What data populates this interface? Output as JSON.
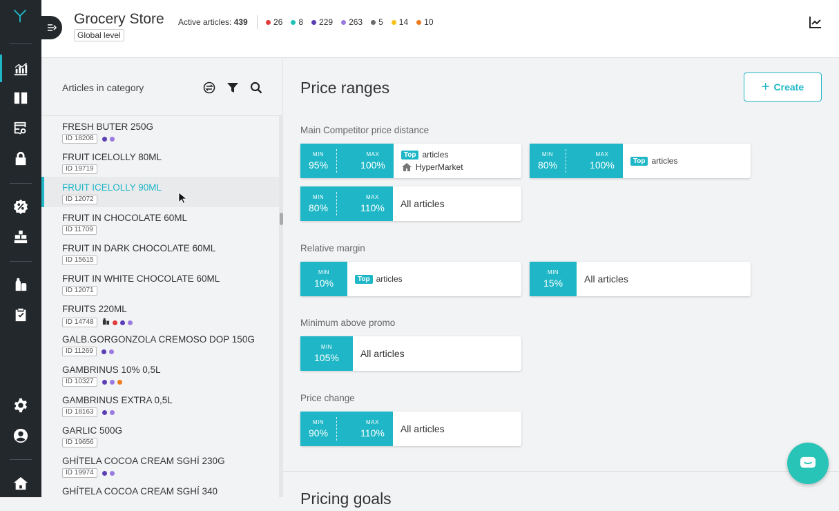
{
  "header": {
    "title": "Grocery Store",
    "level": "Global level",
    "active_label": "Active articles:",
    "active_count": "439",
    "counts": [
      {
        "value": "26",
        "color": "#e03b3b"
      },
      {
        "value": "8",
        "color": "#1fc1b7"
      },
      {
        "value": "229",
        "color": "#5b3fb5"
      },
      {
        "value": "263",
        "color": "#9b7be0"
      },
      {
        "value": "5",
        "color": "#6b6b6b"
      },
      {
        "value": "14",
        "color": "#f5c21b"
      },
      {
        "value": "10",
        "color": "#f07a1a"
      }
    ],
    "chart_icon": "trend-chart-icon"
  },
  "rail": {
    "items": [
      "analytics-icon",
      "columns-icon",
      "table-search-icon",
      "lock-icon",
      "discount-badge-icon",
      "warehouse-icon",
      "products-icon",
      "clipboard-check-icon",
      "settings-icon",
      "account-icon",
      "home-icon"
    ],
    "active": "analytics-icon"
  },
  "left_panel": {
    "title": "Articles in category",
    "tools": [
      "exchange-icon",
      "filter-icon",
      "search-icon"
    ],
    "articles": [
      {
        "name": "FRESH BUTER 250G",
        "id": "ID 18208",
        "dots": [
          "#5b3fb5",
          "#9b7be0"
        ]
      },
      {
        "name": "FRUIT ICELOLLY 80ML",
        "id": "ID 19719",
        "dots": []
      },
      {
        "name": "FRUIT ICELOLLY 90ML",
        "id": "ID 12072",
        "dots": [],
        "selected": true
      },
      {
        "name": "FRUIT IN CHOCOLATE 60ML",
        "id": "ID 11709",
        "dots": []
      },
      {
        "name": "FRUIT IN DARK CHOCOLATE 60ML",
        "id": "ID 15615",
        "dots": []
      },
      {
        "name": "FRUIT IN WHITE CHOCOLATE 60ML",
        "id": "ID 12071",
        "dots": []
      },
      {
        "name": "FRUITS 220ML",
        "id": "ID 14748",
        "dots": [
          "#e03b3b",
          "#5b3fb5",
          "#9b7be0"
        ],
        "icon": true
      },
      {
        "name": "GALB.GORGONZOLA CREMOSO DOP 150G",
        "id": "ID 11269",
        "dots": [
          "#5b3fb5",
          "#9b7be0"
        ]
      },
      {
        "name": "GAMBRINUS 10% 0,5L",
        "id": "ID 10327",
        "dots": [
          "#5b3fb5",
          "#9b7be0",
          "#f07a1a"
        ]
      },
      {
        "name": "GAMBRINUS EXTRA 0,5L",
        "id": "ID 18163",
        "dots": [
          "#5b3fb5",
          "#9b7be0"
        ]
      },
      {
        "name": "GARLIC 500G",
        "id": "ID 19656",
        "dots": []
      },
      {
        "name": "GHÍTELA COCOA CREAM SGHÍ 230G",
        "id": "ID 19974",
        "dots": [
          "#5b3fb5",
          "#9b7be0"
        ]
      },
      {
        "name": "GHÍTELA COCOA CREAM SGHÍ 340",
        "id": "",
        "dots": []
      }
    ]
  },
  "main": {
    "title": "Price ranges",
    "create_label": "Create",
    "sections": {
      "competitor": {
        "title": "Main Competitor price distance",
        "cards": [
          {
            "min_label": "MIN",
            "min": "95%",
            "max_label": "MAX",
            "max": "100%",
            "tag": "Top",
            "text": "articles",
            "sub": "HyperMarket"
          },
          {
            "min_label": "MIN",
            "min": "80%",
            "max_label": "MAX",
            "max": "100%",
            "tag": "Top",
            "text": "articles"
          },
          {
            "min_label": "MIN",
            "min": "80%",
            "max_label": "MAX",
            "max": "110%",
            "text": "All articles"
          }
        ]
      },
      "margin": {
        "title": "Relative margin",
        "cards": [
          {
            "min_label": "MIN",
            "min": "10%",
            "tag": "Top",
            "text": "articles"
          },
          {
            "min_label": "MIN",
            "min": "15%",
            "text": "All articles"
          }
        ]
      },
      "promo": {
        "title": "Minimum above promo",
        "cards": [
          {
            "min_label": "MIN",
            "min": "105%",
            "text": "All articles"
          }
        ]
      },
      "change": {
        "title": "Price change",
        "cards": [
          {
            "min_label": "MIN",
            "min": "90%",
            "max_label": "MAX",
            "max": "110%",
            "text": "All articles"
          }
        ]
      }
    },
    "bottom_title": "Pricing goals"
  },
  "accent_color": "#1fb7c7"
}
